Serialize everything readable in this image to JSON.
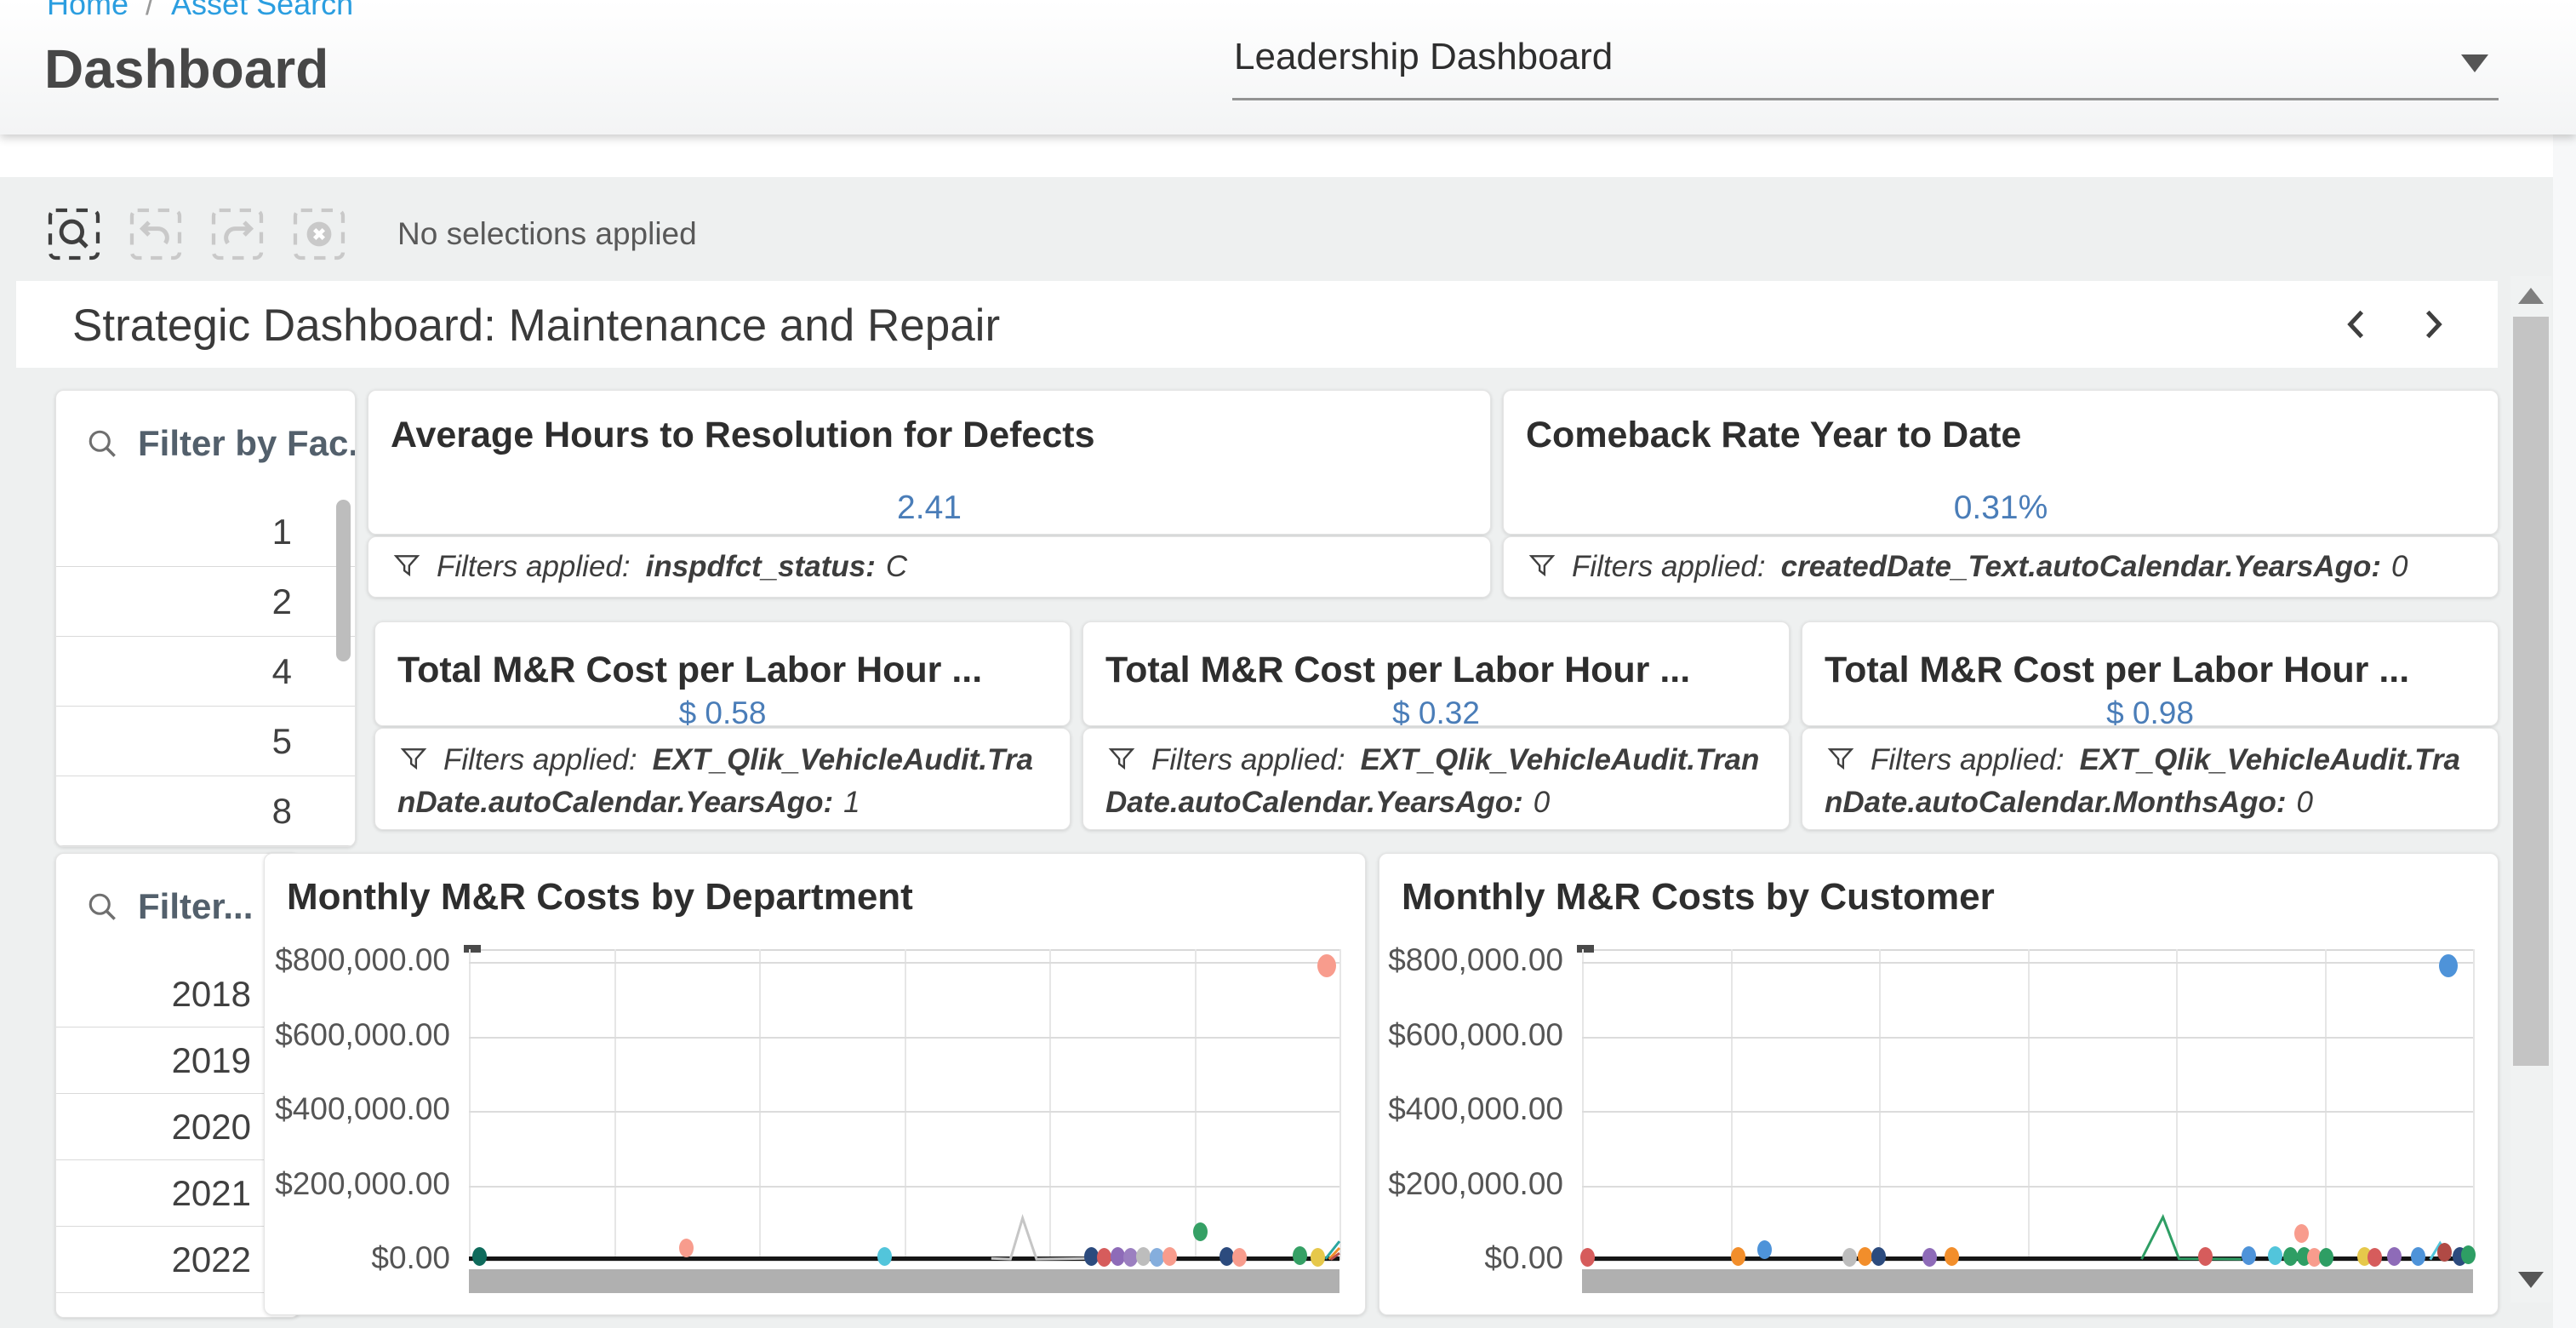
{
  "breadcrumb": {
    "home": "Home",
    "separator": "/",
    "current": "Asset Search"
  },
  "header": {
    "title": "Dashboard",
    "dashboard_selector": {
      "value": "Leadership Dashboard"
    }
  },
  "toolbar": {
    "status": "No selections applied"
  },
  "sheet": {
    "title": "Strategic Dashboard: Maintenance and Repair"
  },
  "filters": {
    "facility": {
      "title": "Filter by Fac...",
      "items": [
        "1",
        "2",
        "4",
        "5",
        "8"
      ]
    },
    "year": {
      "title": "Filter...",
      "items": [
        "2018",
        "2019",
        "2020",
        "2021",
        "2022",
        ""
      ]
    }
  },
  "kpis": [
    {
      "title": "Average Hours to Resolution for Defects",
      "value": "2.41",
      "filters_label": "Filters applied:",
      "filter_field": "inspdfct_status:",
      "filter_value": "C"
    },
    {
      "title": "Comeback Rate Year to Date",
      "value": "0.31%",
      "filters_label": "Filters applied:",
      "filter_field": "createdDate_Text.autoCalendar.YearsAgo:",
      "filter_value": "0"
    },
    {
      "title": "Total M&R Cost per Labor Hour ...",
      "value": "$ 0.58",
      "filters_label": "Filters applied:",
      "filter_field": "EXT_Qlik_VehicleAudit.TranDate.autoCalendar.YearsAgo:",
      "filter_value": "1"
    },
    {
      "title": "Total M&R Cost per Labor Hour ...",
      "value": "$ 0.32",
      "filters_label": "Filters applied:",
      "filter_field": "EXT_Qlik_VehicleAudit.TranDate.autoCalendar.YearsAgo:",
      "filter_value": "0"
    },
    {
      "title": "Total M&R Cost per Labor Hour ...",
      "value": "$ 0.98",
      "filters_label": "Filters applied:",
      "filter_field": "EXT_Qlik_VehicleAudit.TranDate.autoCalendar.MonthsAgo:",
      "filter_value": "0"
    }
  ],
  "colors": {
    "link_blue": "#2b9ee0",
    "kpi_value_blue": "#4a7db8",
    "baseline_black": "#151515",
    "scrollbar_gray": "#b0b0b0"
  },
  "chart_data": [
    {
      "type": "scatter",
      "title": "Monthly M&R Costs by Department",
      "ylim": [
        0,
        800000
      ],
      "grid": true,
      "x_axis_labels_visible": false,
      "yticks": [
        {
          "label": "$800,000.00",
          "value": 800000
        },
        {
          "label": "$600,000.00",
          "value": 600000
        },
        {
          "label": "$400,000.00",
          "value": 400000
        },
        {
          "label": "$200,000.00",
          "value": 200000
        },
        {
          "label": "$0.00",
          "value": 0
        }
      ],
      "points": [
        {
          "x": 0.012,
          "y": 9000,
          "color": "#0F6B5C"
        },
        {
          "x": 0.25,
          "y": 32000,
          "color": "#F89C8D"
        },
        {
          "x": 0.478,
          "y": 9000,
          "color": "#52C5DB"
        },
        {
          "x": 0.715,
          "y": 10000,
          "color": "#2C4B7E"
        },
        {
          "x": 0.73,
          "y": 7000,
          "color": "#D65C5C"
        },
        {
          "x": 0.745,
          "y": 9000,
          "color": "#8E6BB8"
        },
        {
          "x": 0.76,
          "y": 8000,
          "color": "#9B7FC0"
        },
        {
          "x": 0.775,
          "y": 9000,
          "color": "#BDBDBD"
        },
        {
          "x": 0.79,
          "y": 7000,
          "color": "#85AEDD"
        },
        {
          "x": 0.805,
          "y": 9000,
          "color": "#F89C8D"
        },
        {
          "x": 0.84,
          "y": 76000,
          "color": "#35A065"
        },
        {
          "x": 0.87,
          "y": 9000,
          "color": "#2C4B7E"
        },
        {
          "x": 0.885,
          "y": 8000,
          "color": "#F89C8D"
        },
        {
          "x": 0.955,
          "y": 11000,
          "color": "#35A065"
        },
        {
          "x": 0.975,
          "y": 7000,
          "color": "#E6C84B"
        },
        {
          "x": 0.985,
          "y": 790000,
          "color": "#F89C8D"
        }
      ],
      "lines": [
        {
          "color": "#C6C6C6",
          "points": [
            [
              0.6,
              4000
            ],
            [
              0.622,
              2000
            ],
            [
              0.636,
              112000
            ],
            [
              0.652,
              2000
            ],
            [
              0.71,
              4000
            ]
          ]
        },
        {
          "color": "#2AA6A0",
          "points": [
            [
              0.984,
              3000
            ],
            [
              1.0,
              50000
            ]
          ]
        },
        {
          "color": "#F28E2B",
          "points": [
            [
              0.988,
              2000
            ],
            [
              1.0,
              32000
            ]
          ]
        },
        {
          "color": "#C0504D",
          "points": [
            [
              0.99,
              1000
            ],
            [
              1.0,
              18000
            ]
          ]
        }
      ]
    },
    {
      "type": "scatter",
      "title": "Monthly M&R Costs by Customer",
      "ylim": [
        0,
        800000
      ],
      "grid": true,
      "x_axis_labels_visible": false,
      "yticks": [
        {
          "label": "$800,000.00",
          "value": 800000
        },
        {
          "label": "$600,000.00",
          "value": 600000
        },
        {
          "label": "$400,000.00",
          "value": 400000
        },
        {
          "label": "$200,000.00",
          "value": 200000
        },
        {
          "label": "$0.00",
          "value": 0
        }
      ],
      "points": [
        {
          "x": 0.006,
          "y": 6000,
          "color": "#D65C5C"
        },
        {
          "x": 0.175,
          "y": 9000,
          "color": "#F28E2B"
        },
        {
          "x": 0.205,
          "y": 27000,
          "color": "#4E93D9"
        },
        {
          "x": 0.3,
          "y": 7000,
          "color": "#BDBDBD"
        },
        {
          "x": 0.318,
          "y": 9000,
          "color": "#F28E2B"
        },
        {
          "x": 0.333,
          "y": 9000,
          "color": "#2C4B7E"
        },
        {
          "x": 0.39,
          "y": 7000,
          "color": "#8E6BB8"
        },
        {
          "x": 0.415,
          "y": 9000,
          "color": "#F28E2B"
        },
        {
          "x": 0.7,
          "y": 9000,
          "color": "#D65C5C"
        },
        {
          "x": 0.748,
          "y": 11000,
          "color": "#4E93D9"
        },
        {
          "x": 0.778,
          "y": 12000,
          "color": "#52C5DB"
        },
        {
          "x": 0.795,
          "y": 10000,
          "color": "#2E9E64"
        },
        {
          "x": 0.808,
          "y": 70000,
          "color": "#F89C8D"
        },
        {
          "x": 0.81,
          "y": 9000,
          "color": "#2E9E64"
        },
        {
          "x": 0.822,
          "y": 8000,
          "color": "#F89C8D"
        },
        {
          "x": 0.835,
          "y": 7000,
          "color": "#2E9E64"
        },
        {
          "x": 0.878,
          "y": 9000,
          "color": "#E6C84B"
        },
        {
          "x": 0.89,
          "y": 8000,
          "color": "#D65C5C"
        },
        {
          "x": 0.912,
          "y": 10000,
          "color": "#8E6BB8"
        },
        {
          "x": 0.938,
          "y": 9000,
          "color": "#4E93D9"
        },
        {
          "x": 0.968,
          "y": 20000,
          "color": "#B04A45"
        },
        {
          "x": 0.985,
          "y": 9000,
          "color": "#2C4B7E"
        },
        {
          "x": 0.995,
          "y": 13000,
          "color": "#2E9E64"
        },
        {
          "x": 0.972,
          "y": 790000,
          "color": "#4E93D9"
        }
      ],
      "lines": [
        {
          "color": "#2E9E64",
          "points": [
            [
              0.628,
              2000
            ],
            [
              0.652,
              115000
            ],
            [
              0.67,
              3000
            ],
            [
              0.74,
              2000
            ]
          ]
        },
        {
          "color": "#52C5DB",
          "points": [
            [
              0.952,
              1000
            ],
            [
              0.963,
              45000
            ],
            [
              0.974,
              4000
            ]
          ]
        }
      ]
    }
  ]
}
